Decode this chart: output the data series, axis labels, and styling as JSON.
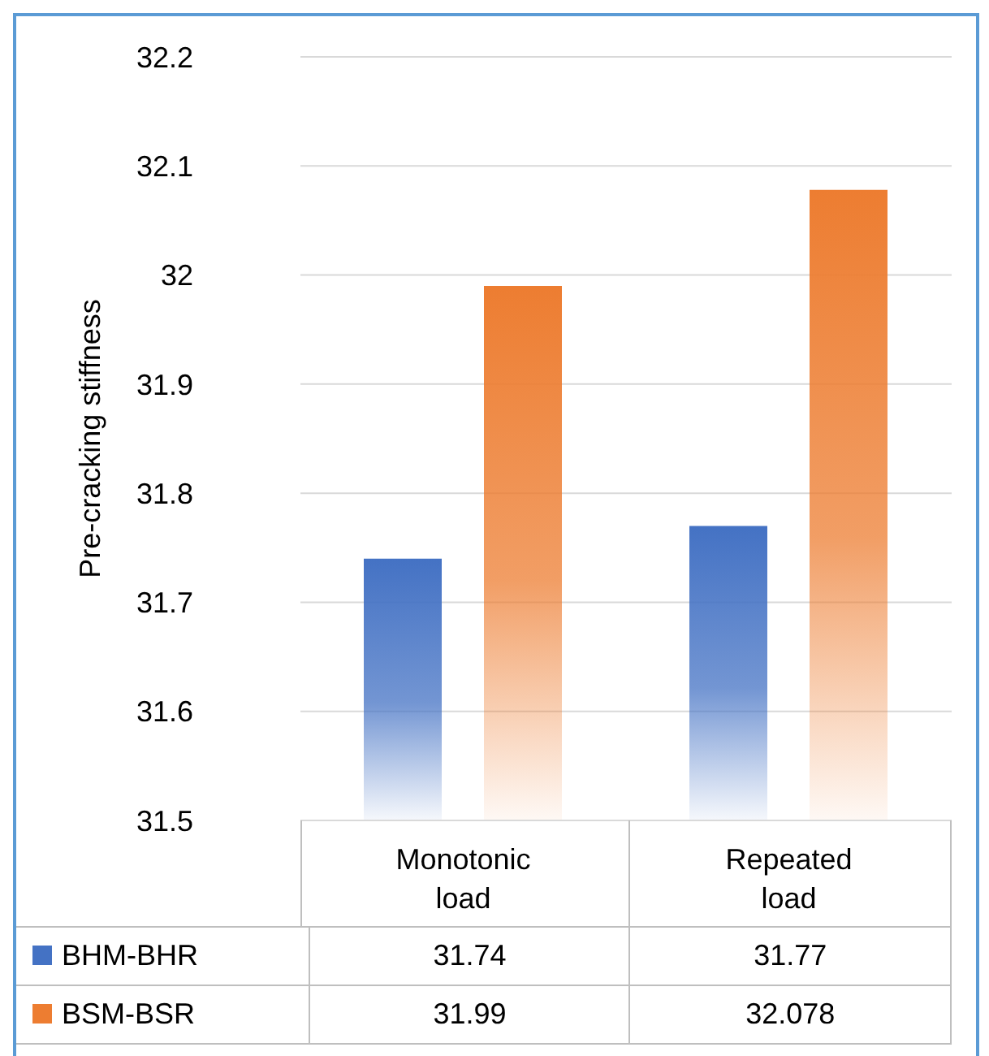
{
  "chart_data": {
    "type": "bar",
    "ylabel": "Pre-cracking stiffness",
    "categories": [
      "Monotonic load",
      "Repeated load"
    ],
    "series": [
      {
        "name": "BHM-BHR",
        "color": "#4472c4",
        "values": [
          31.74,
          31.77
        ]
      },
      {
        "name": "BSM-BSR",
        "color": "#ed7d31",
        "values": [
          31.99,
          32.078
        ]
      }
    ],
    "ylim": [
      31.5,
      32.2
    ],
    "yticks": [
      31.5,
      31.6,
      31.7,
      31.8,
      31.9,
      32,
      32.1,
      32.2
    ],
    "grid": "y",
    "legend": "bottom",
    "data_labels": true
  }
}
